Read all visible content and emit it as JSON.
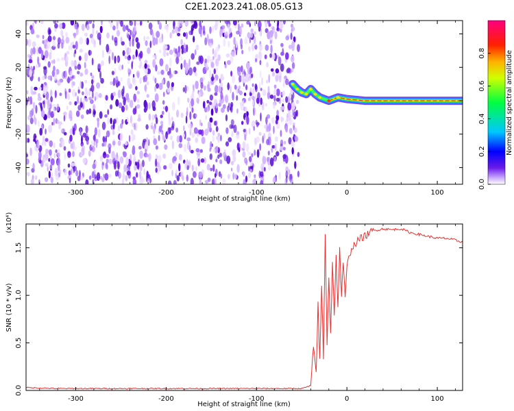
{
  "title": "C2E1.2023.241.08.05.G13",
  "chart_data": [
    {
      "type": "heatmap",
      "xlabel": "Height of straight line (km)",
      "ylabel": "Frequency (Hz)",
      "xlim": [
        -355,
        128
      ],
      "ylim": [
        -50,
        48
      ],
      "x_ticks": [
        -300,
        -200,
        -100,
        0,
        100
      ],
      "y_ticks": [
        -40,
        -20,
        0,
        20,
        40
      ],
      "colorbar": {
        "label": "Normalized spectral amplitude",
        "range": [
          0,
          1
        ],
        "ticks": [
          "0.0",
          "0.2",
          "0.4",
          "0.6",
          "0.8"
        ],
        "tick_values": [
          0.0,
          0.2,
          0.4,
          0.6,
          0.8
        ],
        "colors": [
          "#ffffff",
          "#b07cff",
          "#4b00e0",
          "#0000ff",
          "#00ffff",
          "#00ff00",
          "#ffff00",
          "#ff8000",
          "#ff0000",
          "#ff0080"
        ]
      },
      "noise_region": {
        "x": [
          -355,
          -58
        ],
        "description": "broadband noise"
      },
      "signal_track": [
        {
          "x": -60,
          "freq": 10,
          "amp": 0.25
        },
        {
          "x": -55,
          "freq": 7,
          "amp": 0.3
        },
        {
          "x": -50,
          "freq": 5,
          "amp": 0.35
        },
        {
          "x": -45,
          "freq": 4,
          "amp": 0.45
        },
        {
          "x": -40,
          "freq": 7,
          "amp": 0.5
        },
        {
          "x": -35,
          "freq": 4,
          "amp": 0.5
        },
        {
          "x": -30,
          "freq": 2,
          "amp": 0.55
        },
        {
          "x": -20,
          "freq": 0,
          "amp": 0.75
        },
        {
          "x": -10,
          "freq": 2,
          "amp": 0.6
        },
        {
          "x": 0,
          "freq": 1,
          "amp": 0.65
        },
        {
          "x": 20,
          "freq": 0,
          "amp": 0.8
        },
        {
          "x": 60,
          "freq": 0,
          "amp": 0.85
        },
        {
          "x": 100,
          "freq": 0,
          "amp": 0.9
        },
        {
          "x": 128,
          "freq": 0,
          "amp": 0.9
        }
      ]
    },
    {
      "type": "line",
      "xlabel": "Height of straight line (km)",
      "ylabel": "SNR (10 * v/v)",
      "y_multiplier": "(x10⁴)",
      "xlim": [
        -355,
        128
      ],
      "ylim": [
        0,
        1.75
      ],
      "x_ticks": [
        -300,
        -200,
        -100,
        0,
        100
      ],
      "y_ticks": [
        "0.0",
        "0.5",
        "1.0",
        "1.5"
      ],
      "y_tick_values": [
        0.0,
        0.5,
        1.0,
        1.5
      ],
      "color": "#e83030",
      "series": [
        {
          "x": [
            -355,
            -320,
            -280,
            -240,
            -200,
            -160,
            -120,
            -80,
            -50,
            -40,
            -37,
            -34,
            -32,
            -30,
            -28,
            -26,
            -24,
            -22,
            -20,
            -18,
            -16,
            -14,
            -12,
            -10,
            -8,
            -6,
            -4,
            -2,
            0,
            5,
            10,
            15,
            20,
            25,
            30,
            40,
            50,
            60,
            70,
            80,
            90,
            100,
            110,
            120,
            128
          ],
          "y": [
            0.03,
            0.02,
            0.02,
            0.02,
            0.02,
            0.02,
            0.02,
            0.02,
            0.02,
            0.05,
            0.45,
            0.2,
            0.9,
            0.3,
            1.1,
            0.35,
            1.62,
            0.5,
            1.2,
            0.6,
            1.35,
            0.8,
            1.4,
            0.85,
            1.5,
            1.0,
            1.35,
            0.95,
            1.3,
            1.5,
            1.55,
            1.6,
            1.62,
            1.66,
            1.68,
            1.7,
            1.69,
            1.7,
            1.66,
            1.64,
            1.62,
            1.6,
            1.6,
            1.58,
            1.56
          ]
        }
      ]
    }
  ]
}
